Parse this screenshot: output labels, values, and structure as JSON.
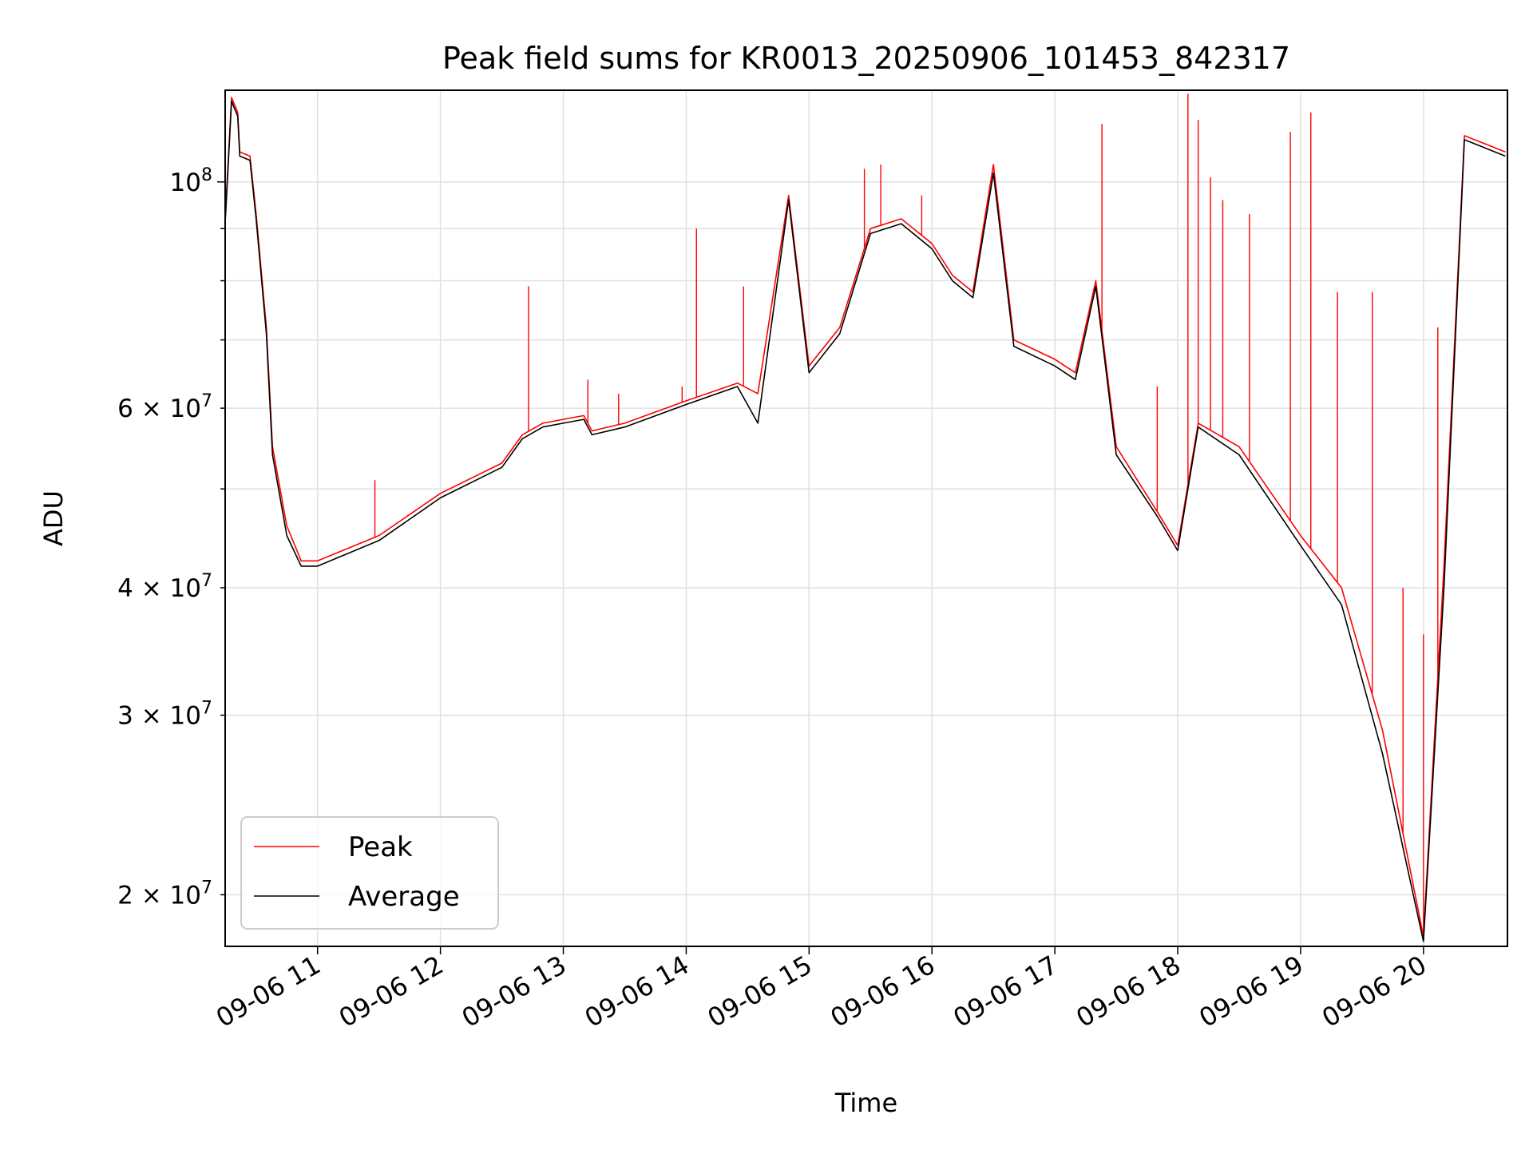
{
  "chart_data": {
    "type": "line",
    "title": "Peak field sums for KR0013_20250906_101453_842317",
    "xlabel": "Time",
    "ylabel": "ADU",
    "yscale": "log",
    "xlim": [
      "2025-09-06 10:14:53",
      "2025-09-06 20:41:00"
    ],
    "ylim": [
      17800000,
      123000000
    ],
    "grid": true,
    "legend_position": "lower-left",
    "x_ticks": [
      "2025-09-06 11:00",
      "2025-09-06 12:00",
      "2025-09-06 13:00",
      "2025-09-06 14:00",
      "2025-09-06 15:00",
      "2025-09-06 16:00",
      "2025-09-06 17:00",
      "2025-09-06 18:00",
      "2025-09-06 19:00",
      "2025-09-06 20:00"
    ],
    "x_tick_labels": [
      "09-06 11",
      "09-06 12",
      "09-06 13",
      "09-06 14",
      "09-06 15",
      "09-06 16",
      "09-06 17",
      "09-06 18",
      "09-06 19",
      "09-06 20"
    ],
    "y_ticks_major": [
      {
        "value": 100000000,
        "mantissa": "",
        "base": "10",
        "exp": "8"
      }
    ],
    "y_ticks_minor": [
      {
        "value": 20000000,
        "mantissa": "2",
        "base": "10",
        "exp": "7"
      },
      {
        "value": 30000000,
        "mantissa": "3",
        "base": "10",
        "exp": "7"
      },
      {
        "value": 40000000,
        "mantissa": "4",
        "base": "10",
        "exp": "7"
      },
      {
        "value": 60000000,
        "mantissa": "6",
        "base": "10",
        "exp": "7"
      }
    ],
    "y_ticks_minor_unlabeled": [
      50000000,
      70000000,
      80000000,
      90000000
    ],
    "series": [
      {
        "name": "Peak",
        "color": "#ff0000",
        "points": [
          [
            "2025-09-06 10:15",
            93000000
          ],
          [
            "2025-09-06 10:18",
            121000000
          ],
          [
            "2025-09-06 10:21",
            117000000
          ],
          [
            "2025-09-06 10:22",
            107000000
          ],
          [
            "2025-09-06 10:27",
            106000000
          ],
          [
            "2025-09-06 10:30",
            93000000
          ],
          [
            "2025-09-06 10:35",
            72000000
          ],
          [
            "2025-09-06 10:38",
            55000000
          ],
          [
            "2025-09-06 10:45",
            46000000
          ],
          [
            "2025-09-06 10:52",
            42500000
          ],
          [
            "2025-09-06 11:00",
            42500000
          ],
          [
            "2025-09-06 11:30",
            45000000
          ],
          [
            "2025-09-06 12:00",
            49500000
          ],
          [
            "2025-09-06 12:30",
            53000000
          ],
          [
            "2025-09-06 12:40",
            56500000
          ],
          [
            "2025-09-06 12:50",
            58000000
          ],
          [
            "2025-09-06 13:00",
            58500000
          ],
          [
            "2025-09-06 13:10",
            59000000
          ],
          [
            "2025-09-06 13:14",
            57000000
          ],
          [
            "2025-09-06 13:30",
            58000000
          ],
          [
            "2025-09-06 14:00",
            61000000
          ],
          [
            "2025-09-06 14:25",
            63500000
          ],
          [
            "2025-09-06 14:35",
            62000000
          ],
          [
            "2025-09-06 14:50",
            97000000
          ],
          [
            "2025-09-06 15:00",
            66000000
          ],
          [
            "2025-09-06 15:15",
            72000000
          ],
          [
            "2025-09-06 15:30",
            90000000
          ],
          [
            "2025-09-06 15:45",
            92000000
          ],
          [
            "2025-09-06 16:00",
            87000000
          ],
          [
            "2025-09-06 16:10",
            81000000
          ],
          [
            "2025-09-06 16:20",
            78000000
          ],
          [
            "2025-09-06 16:30",
            104000000
          ],
          [
            "2025-09-06 16:40",
            70000000
          ],
          [
            "2025-09-06 17:00",
            67000000
          ],
          [
            "2025-09-06 17:10",
            65000000
          ],
          [
            "2025-09-06 17:20",
            80000000
          ],
          [
            "2025-09-06 17:30",
            55000000
          ],
          [
            "2025-09-06 17:50",
            47500000
          ],
          [
            "2025-09-06 18:00",
            44000000
          ],
          [
            "2025-09-06 18:10",
            58000000
          ],
          [
            "2025-09-06 18:30",
            55000000
          ],
          [
            "2025-09-06 19:00",
            45000000
          ],
          [
            "2025-09-06 19:20",
            40000000
          ],
          [
            "2025-09-06 19:40",
            29000000
          ],
          [
            "2025-09-06 20:00",
            18200000
          ],
          [
            "2025-09-06 20:10",
            42000000
          ],
          [
            "2025-09-06 20:20",
            111000000
          ],
          [
            "2025-09-06 20:40",
            107000000
          ]
        ],
        "spikes": [
          [
            "2025-09-06 11:28",
            51000000
          ],
          [
            "2025-09-06 12:43",
            79000000
          ],
          [
            "2025-09-06 13:12",
            64000000
          ],
          [
            "2025-09-06 13:27",
            62000000
          ],
          [
            "2025-09-06 13:58",
            63000000
          ],
          [
            "2025-09-06 14:05",
            90000000
          ],
          [
            "2025-09-06 14:28",
            79000000
          ],
          [
            "2025-09-06 15:27",
            103000000
          ],
          [
            "2025-09-06 15:35",
            104000000
          ],
          [
            "2025-09-06 15:55",
            97000000
          ],
          [
            "2025-09-06 16:30",
            103000000
          ],
          [
            "2025-09-06 17:23",
            114000000
          ],
          [
            "2025-09-06 17:50",
            63000000
          ],
          [
            "2025-09-06 18:05",
            122000000
          ],
          [
            "2025-09-06 18:10",
            115000000
          ],
          [
            "2025-09-06 18:16",
            101000000
          ],
          [
            "2025-09-06 18:22",
            96000000
          ],
          [
            "2025-09-06 18:35",
            93000000
          ],
          [
            "2025-09-06 18:55",
            112000000
          ],
          [
            "2025-09-06 19:05",
            117000000
          ],
          [
            "2025-09-06 19:18",
            78000000
          ],
          [
            "2025-09-06 19:35",
            78000000
          ],
          [
            "2025-09-06 19:50",
            40000000
          ],
          [
            "2025-09-06 20:00",
            36000000
          ],
          [
            "2025-09-06 20:07",
            72000000
          ]
        ]
      },
      {
        "name": "Average",
        "color": "#000000",
        "points": [
          [
            "2025-09-06 10:15",
            92000000
          ],
          [
            "2025-09-06 10:18",
            120000000
          ],
          [
            "2025-09-06 10:21",
            116000000
          ],
          [
            "2025-09-06 10:22",
            106000000
          ],
          [
            "2025-09-06 10:27",
            105000000
          ],
          [
            "2025-09-06 10:30",
            92000000
          ],
          [
            "2025-09-06 10:35",
            71000000
          ],
          [
            "2025-09-06 10:38",
            54000000
          ],
          [
            "2025-09-06 10:45",
            45000000
          ],
          [
            "2025-09-06 10:52",
            42000000
          ],
          [
            "2025-09-06 11:00",
            42000000
          ],
          [
            "2025-09-06 11:30",
            44500000
          ],
          [
            "2025-09-06 12:00",
            49000000
          ],
          [
            "2025-09-06 12:30",
            52500000
          ],
          [
            "2025-09-06 12:40",
            56000000
          ],
          [
            "2025-09-06 12:50",
            57500000
          ],
          [
            "2025-09-06 13:00",
            58000000
          ],
          [
            "2025-09-06 13:10",
            58500000
          ],
          [
            "2025-09-06 13:14",
            56500000
          ],
          [
            "2025-09-06 13:30",
            57500000
          ],
          [
            "2025-09-06 14:00",
            60500000
          ],
          [
            "2025-09-06 14:25",
            63000000
          ],
          [
            "2025-09-06 14:35",
            58000000
          ],
          [
            "2025-09-06 14:50",
            96000000
          ],
          [
            "2025-09-06 15:00",
            65000000
          ],
          [
            "2025-09-06 15:15",
            71000000
          ],
          [
            "2025-09-06 15:30",
            89000000
          ],
          [
            "2025-09-06 15:45",
            91000000
          ],
          [
            "2025-09-06 16:00",
            86000000
          ],
          [
            "2025-09-06 16:10",
            80000000
          ],
          [
            "2025-09-06 16:20",
            77000000
          ],
          [
            "2025-09-06 16:30",
            102000000
          ],
          [
            "2025-09-06 16:40",
            69000000
          ],
          [
            "2025-09-06 17:00",
            66000000
          ],
          [
            "2025-09-06 17:10",
            64000000
          ],
          [
            "2025-09-06 17:20",
            79000000
          ],
          [
            "2025-09-06 17:30",
            54000000
          ],
          [
            "2025-09-06 17:50",
            47000000
          ],
          [
            "2025-09-06 18:00",
            43500000
          ],
          [
            "2025-09-06 18:10",
            57500000
          ],
          [
            "2025-09-06 18:30",
            54000000
          ],
          [
            "2025-09-06 19:00",
            44000000
          ],
          [
            "2025-09-06 19:20",
            38500000
          ],
          [
            "2025-09-06 19:40",
            27500000
          ],
          [
            "2025-09-06 20:00",
            18000000
          ],
          [
            "2025-09-06 20:10",
            40000000
          ],
          [
            "2025-09-06 20:20",
            110000000
          ],
          [
            "2025-09-06 20:40",
            106000000
          ]
        ]
      }
    ]
  }
}
